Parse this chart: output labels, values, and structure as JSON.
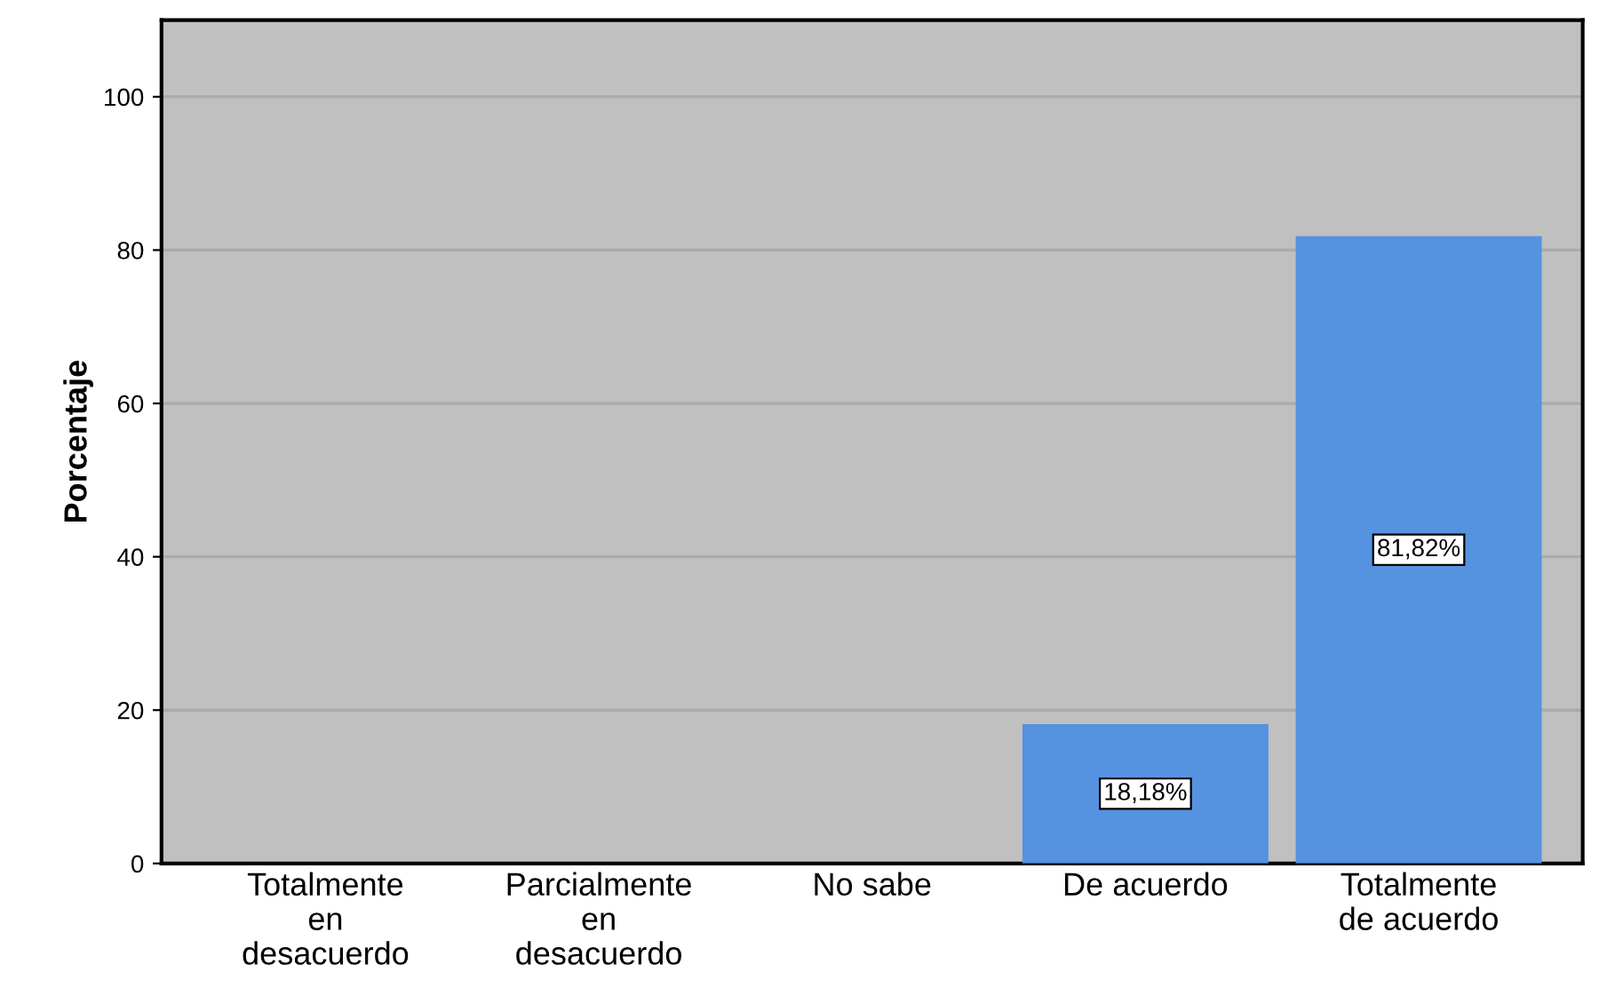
{
  "chart_data": {
    "type": "bar",
    "ylabel": "Porcentaje",
    "categories": [
      "Totalmente\nen\ndesacuerdo",
      "Parcialmente\nen\ndesacuerdo",
      "No sabe",
      "De acuerdo",
      "Totalmente\nde acuerdo"
    ],
    "values": [
      null,
      null,
      null,
      18.18,
      81.82
    ],
    "value_labels": [
      null,
      null,
      null,
      "18,18%",
      "81,82%"
    ],
    "color": "#5592e0",
    "ylim": [
      0,
      110
    ],
    "yticks": [
      0,
      20,
      40,
      60,
      80,
      100
    ],
    "grid": "y"
  }
}
